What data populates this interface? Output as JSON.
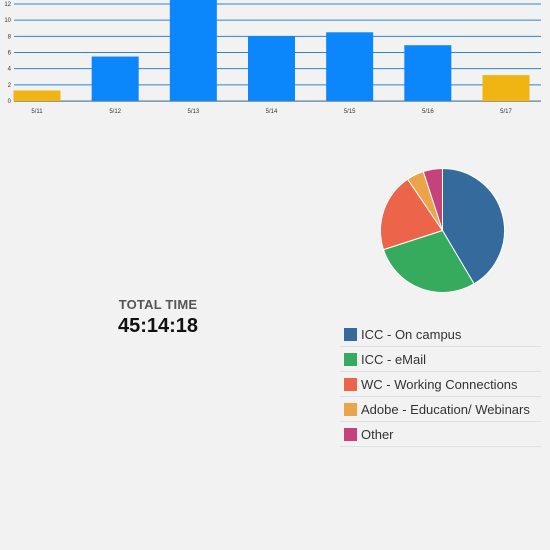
{
  "chart_data": [
    {
      "type": "bar",
      "categories": [
        "5/11",
        "5/12",
        "5/13",
        "5/14",
        "5/15",
        "5/16",
        "5/17"
      ],
      "values": [
        1.3,
        5.5,
        12.6,
        8.0,
        8.5,
        6.9,
        3.2
      ],
      "highlight": [
        true,
        false,
        false,
        false,
        false,
        false,
        true
      ],
      "ylim": [
        0,
        12
      ],
      "yticks": [
        "0",
        "2",
        "4",
        "6",
        "8",
        "10",
        "12"
      ],
      "grid": true,
      "colors": {
        "bar": "#0b86fb",
        "highlight": "#f0b413",
        "grid": "#2b86d0"
      }
    },
    {
      "type": "pie",
      "labels": [
        "ICC - On campus",
        "ICC - eMail",
        "WC - Working Connections",
        "Adobe - Education/ Webinars",
        "Other"
      ],
      "values": [
        41.5,
        28.5,
        20.5,
        4.5,
        5.0
      ],
      "colors": [
        "#356b9c",
        "#36ab5e",
        "#ec6449",
        "#eba44a",
        "#c5427a"
      ],
      "legend_position": "bottom-right"
    }
  ],
  "summary": {
    "total_label": "TOTAL TIME",
    "total_value": "45:14:18"
  }
}
